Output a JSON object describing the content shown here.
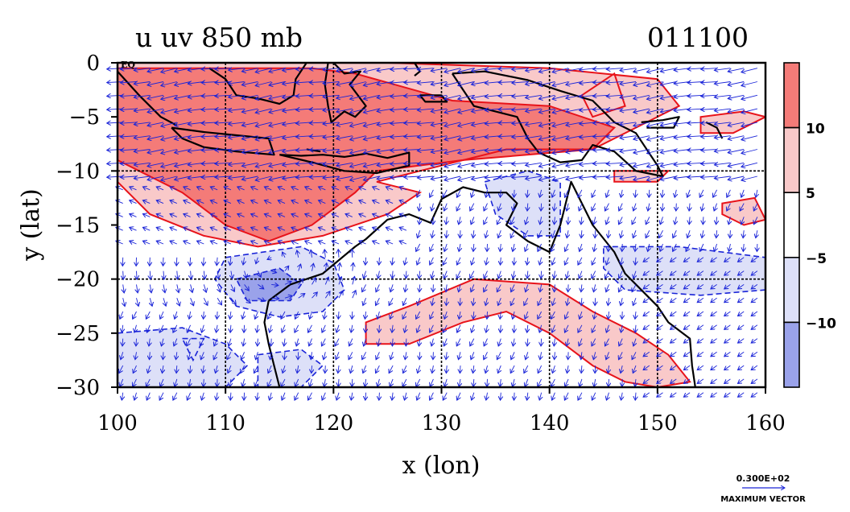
{
  "chart_data": {
    "type": "heatmap",
    "title_left": "u uv 850 mb",
    "title_right": "011100",
    "xlabel": "x (lon)",
    "ylabel": "y (lat)",
    "xlim": [
      100,
      160
    ],
    "ylim": [
      -30,
      0
    ],
    "x_ticks": [
      100,
      110,
      120,
      130,
      140,
      150,
      160
    ],
    "x_tick_labels": [
      "100",
      "110",
      "120",
      "130",
      "140",
      "150",
      "160"
    ],
    "y_ticks": [
      0,
      -5,
      -10,
      -15,
      -20,
      -25,
      -30
    ],
    "y_tick_labels": [
      "0",
      "−5",
      "−10",
      "−15",
      "−20",
      "−25",
      "−30"
    ],
    "eq_label": "EQ",
    "grid_lon": [
      110,
      120,
      130,
      140,
      150
    ],
    "grid_lat": [
      -10,
      -20
    ],
    "colorbar": {
      "levels": [
        10,
        5,
        -5,
        -10
      ],
      "labels": [
        "10",
        "5",
        "−5",
        "−10"
      ],
      "colors": [
        "#f47b78",
        "#f9c9c9",
        "#ffffff",
        "#dde0f8",
        "#9aa2ea"
      ]
    },
    "positive_regions": [
      {
        "level": 5,
        "lonlat": [
          [
            100,
            0
          ],
          [
            125,
            0
          ],
          [
            140,
            -0.5
          ],
          [
            150,
            -1.5
          ],
          [
            152,
            -4
          ],
          [
            148,
            -6
          ],
          [
            144,
            -8
          ],
          [
            136,
            -8
          ],
          [
            128,
            -10
          ],
          [
            124,
            -11
          ],
          [
            128,
            -12
          ],
          [
            125,
            -14
          ],
          [
            119,
            -16
          ],
          [
            113,
            -17
          ],
          [
            108,
            -16
          ],
          [
            103,
            -14
          ],
          [
            100,
            -11
          ]
        ]
      },
      {
        "level": 10,
        "lonlat": [
          [
            100,
            -0.5
          ],
          [
            111,
            -0.5
          ],
          [
            118,
            -0.5
          ],
          [
            122,
            -1
          ],
          [
            131,
            -3.5
          ],
          [
            140,
            -4
          ],
          [
            146,
            -6
          ],
          [
            144,
            -8
          ],
          [
            132,
            -9
          ],
          [
            124,
            -10
          ],
          [
            122,
            -12
          ],
          [
            118,
            -15
          ],
          [
            114,
            -16.5
          ],
          [
            110,
            -15
          ],
          [
            106,
            -12
          ],
          [
            100,
            -9
          ]
        ]
      },
      {
        "level": 5,
        "lonlat": [
          [
            123,
            -24
          ],
          [
            127,
            -22.5
          ],
          [
            133,
            -20
          ],
          [
            140,
            -20.5
          ],
          [
            144,
            -23
          ],
          [
            148,
            -25
          ],
          [
            151,
            -27
          ],
          [
            153,
            -29.5
          ],
          [
            150,
            -30
          ],
          [
            147,
            -29.5
          ],
          [
            144,
            -28
          ],
          [
            140,
            -25
          ],
          [
            136,
            -23
          ],
          [
            132,
            -24
          ],
          [
            127,
            -26
          ],
          [
            123,
            -26
          ]
        ]
      },
      {
        "level": 5,
        "lonlat": [
          [
            143,
            -3
          ],
          [
            146,
            -1
          ],
          [
            147,
            -4
          ],
          [
            144,
            -5
          ]
        ]
      },
      {
        "level": 5,
        "lonlat": [
          [
            154,
            -5
          ],
          [
            158,
            -4.5
          ],
          [
            160,
            -5
          ],
          [
            157,
            -6.5
          ],
          [
            154,
            -6.5
          ]
        ]
      },
      {
        "level": 5,
        "lonlat": [
          [
            156,
            -13
          ],
          [
            159,
            -12.5
          ],
          [
            160,
            -14.5
          ],
          [
            158,
            -15
          ],
          [
            156,
            -14
          ]
        ]
      },
      {
        "level": 5,
        "lonlat": [
          [
            146,
            -10
          ],
          [
            151,
            -10
          ],
          [
            150,
            -11
          ],
          [
            146,
            -11
          ]
        ]
      }
    ],
    "negative_regions": [
      {
        "level": -5,
        "lonlat": [
          [
            110,
            -18
          ],
          [
            117,
            -17
          ],
          [
            120,
            -18.5
          ],
          [
            121,
            -21
          ],
          [
            119,
            -23
          ],
          [
            115,
            -23.5
          ],
          [
            111,
            -22.5
          ],
          [
            109,
            -20
          ]
        ]
      },
      {
        "level": -10,
        "lonlat": [
          [
            111,
            -20
          ],
          [
            115,
            -19
          ],
          [
            117,
            -20.5
          ],
          [
            116,
            -22
          ],
          [
            112,
            -22
          ]
        ]
      },
      {
        "level": -5,
        "lonlat": [
          [
            100,
            -25
          ],
          [
            106,
            -24.5
          ],
          [
            110,
            -26
          ],
          [
            112,
            -28
          ],
          [
            110,
            -30
          ],
          [
            100,
            -30
          ]
        ]
      },
      {
        "level": -5,
        "lonlat": [
          [
            106,
            -25.5
          ],
          [
            108,
            -25.5
          ],
          [
            107,
            -27.5
          ]
        ]
      },
      {
        "level": -5,
        "lonlat": [
          [
            134,
            -11
          ],
          [
            138,
            -10
          ],
          [
            141,
            -11
          ],
          [
            141,
            -16
          ],
          [
            138,
            -16
          ],
          [
            135,
            -14
          ]
        ]
      },
      {
        "level": -5,
        "lonlat": [
          [
            145,
            -17
          ],
          [
            152,
            -17
          ],
          [
            160,
            -18
          ],
          [
            160,
            -21
          ],
          [
            154,
            -21.5
          ],
          [
            147,
            -21
          ],
          [
            145,
            -19
          ]
        ]
      },
      {
        "level": -5,
        "lonlat": [
          [
            113,
            -27
          ],
          [
            117,
            -26.5
          ],
          [
            119,
            -28
          ],
          [
            117,
            -30
          ],
          [
            113,
            -30
          ]
        ]
      }
    ],
    "coastlines": [
      {
        "name": "australia",
        "lonlat": [
          [
            114,
            -22
          ],
          [
            116,
            -20.5
          ],
          [
            119,
            -19.5
          ],
          [
            122,
            -17
          ],
          [
            123,
            -16.3
          ],
          [
            125,
            -14.5
          ],
          [
            127,
            -14
          ],
          [
            129,
            -14.8
          ],
          [
            130,
            -12.6
          ],
          [
            132,
            -11.5
          ],
          [
            134,
            -12
          ],
          [
            136,
            -12
          ],
          [
            137,
            -13
          ],
          [
            136,
            -15
          ],
          [
            138,
            -16.5
          ],
          [
            140,
            -17.5
          ],
          [
            141,
            -15
          ],
          [
            142,
            -11
          ],
          [
            143,
            -13
          ],
          [
            144,
            -15
          ],
          [
            146,
            -17.5
          ],
          [
            147,
            -19.5
          ],
          [
            149,
            -21.5
          ],
          [
            150,
            -22.5
          ],
          [
            151,
            -24
          ],
          [
            153,
            -25.5
          ],
          [
            153.2,
            -28
          ],
          [
            153.5,
            -30
          ]
        ]
      },
      {
        "name": "australia-west",
        "lonlat": [
          [
            114,
            -22
          ],
          [
            113.6,
            -24
          ],
          [
            114,
            -26
          ],
          [
            114.5,
            -28
          ],
          [
            115,
            -30
          ]
        ]
      },
      {
        "name": "new-guinea",
        "lonlat": [
          [
            131,
            -1
          ],
          [
            134,
            -0.8
          ],
          [
            138,
            -1.6
          ],
          [
            141,
            -2.6
          ],
          [
            144,
            -3.5
          ],
          [
            146,
            -5.5
          ],
          [
            148,
            -6.5
          ],
          [
            150,
            -9.5
          ],
          [
            150.5,
            -10.5
          ],
          [
            148,
            -10
          ],
          [
            146,
            -8.2
          ],
          [
            144,
            -7.6
          ],
          [
            143,
            -9
          ],
          [
            141,
            -9.2
          ],
          [
            139,
            -8.3
          ],
          [
            138,
            -7
          ],
          [
            137,
            -5
          ],
          [
            133,
            -4
          ],
          [
            132,
            -2.5
          ],
          [
            131,
            -1
          ]
        ]
      },
      {
        "name": "java",
        "lonlat": [
          [
            105,
            -6
          ],
          [
            108,
            -6.4
          ],
          [
            111,
            -6.7
          ],
          [
            114,
            -7
          ],
          [
            114.5,
            -8.5
          ],
          [
            111,
            -8.2
          ],
          [
            108,
            -7.8
          ],
          [
            106,
            -7
          ],
          [
            105,
            -6
          ]
        ]
      },
      {
        "name": "lesser-sundas",
        "lonlat": [
          [
            115,
            -8.5
          ],
          [
            117,
            -8.6
          ],
          [
            119,
            -8.5
          ],
          [
            121,
            -8.7
          ],
          [
            123,
            -8.4
          ],
          [
            125,
            -8.8
          ],
          [
            127,
            -8.3
          ],
          [
            127,
            -9.5
          ],
          [
            124,
            -10.2
          ],
          [
            121,
            -10
          ],
          [
            118,
            -9.2
          ],
          [
            115,
            -8.5
          ]
        ]
      },
      {
        "name": "sumatra",
        "lonlat": [
          [
            100,
            -0.8
          ],
          [
            102,
            -3
          ],
          [
            104,
            -5
          ],
          [
            105.5,
            -5.8
          ]
        ]
      },
      {
        "name": "borneo",
        "lonlat": [
          [
            108.5,
            -0.5
          ],
          [
            110,
            -1.5
          ],
          [
            111,
            -3
          ],
          [
            113,
            -3.3
          ],
          [
            115,
            -3.8
          ],
          [
            116.3,
            -3
          ],
          [
            116.5,
            -1.5
          ],
          [
            117.5,
            0
          ]
        ]
      },
      {
        "name": "sulawesi",
        "lonlat": [
          [
            119.5,
            0
          ],
          [
            119.2,
            -2
          ],
          [
            119.5,
            -4
          ],
          [
            119.8,
            -5.5
          ],
          [
            121,
            -4.5
          ],
          [
            122,
            -5
          ],
          [
            123,
            -4
          ],
          [
            121.5,
            -2
          ],
          [
            122.5,
            -0.8
          ],
          [
            121,
            -1
          ],
          [
            120,
            0
          ]
        ]
      },
      {
        "name": "seram",
        "lonlat": [
          [
            128,
            -3
          ],
          [
            130,
            -3
          ],
          [
            130.5,
            -3.6
          ],
          [
            128.5,
            -3.6
          ],
          [
            128,
            -3
          ]
        ]
      },
      {
        "name": "new-britain",
        "lonlat": [
          [
            148.5,
            -5.5
          ],
          [
            150.5,
            -5.3
          ],
          [
            152,
            -5
          ],
          [
            151.5,
            -6
          ],
          [
            149,
            -6
          ]
        ]
      },
      {
        "name": "bougainville",
        "lonlat": [
          [
            154.5,
            -5.5
          ],
          [
            155.5,
            -6
          ],
          [
            156,
            -7
          ]
        ]
      },
      {
        "name": "halmahera",
        "lonlat": [
          [
            127.5,
            0
          ],
          [
            128,
            -0.8
          ],
          [
            127.5,
            -1.2
          ]
        ]
      },
      {
        "name": "sumbawa-north",
        "lonlat": [
          [
            117.5,
            -8
          ],
          [
            118.8,
            -8.2
          ]
        ]
      }
    ],
    "vector_field": {
      "maximum_vector_label": "0.300E+02",
      "maximum_vector_caption": "MAXIMUM VECTOR",
      "color": "#1a24d8"
    }
  }
}
